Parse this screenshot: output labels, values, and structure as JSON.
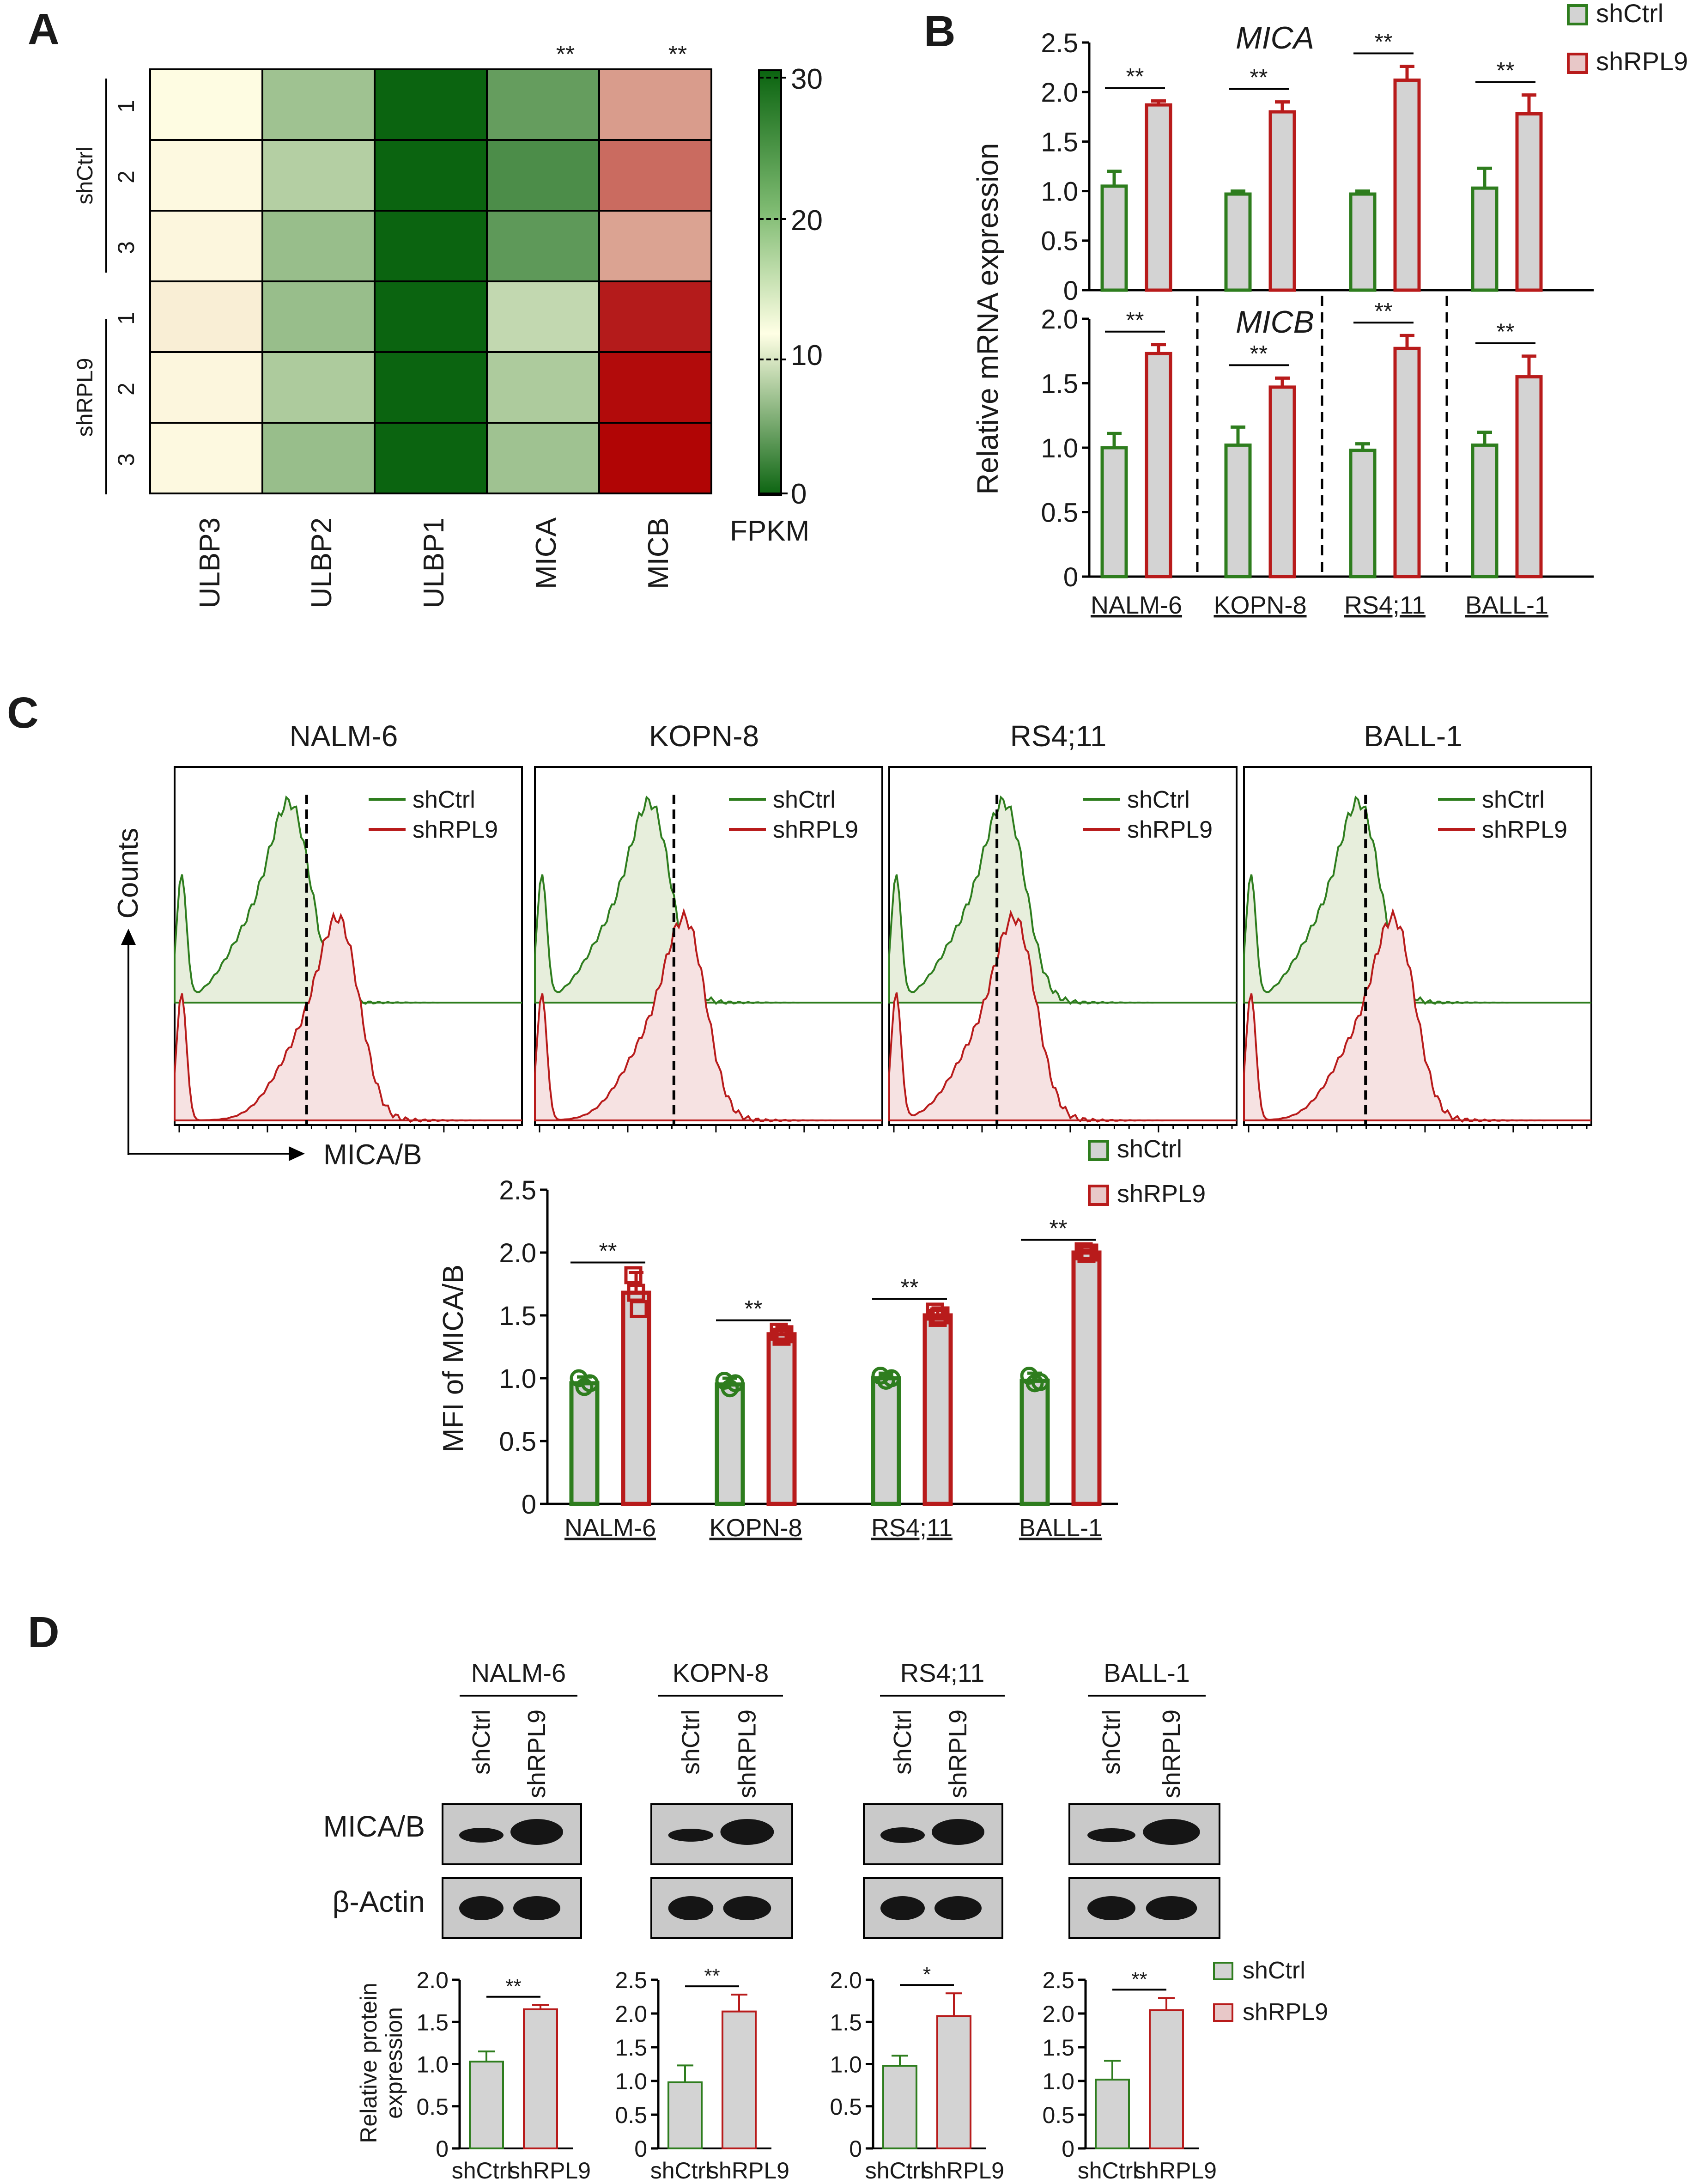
{
  "colors": {
    "green": "#2e7d1e",
    "red": "#b81b1b",
    "bar_fill": "#d3d3d3",
    "hm_dark": "#0b6410",
    "hm_red": "#b00000",
    "band": "#151515",
    "blot_bg": "#c9c9c9"
  },
  "panel_labels": [
    "A",
    "B",
    "C",
    "D"
  ],
  "chart_data": [
    {
      "id": "A",
      "type": "heatmap",
      "columns": [
        "ULBP3",
        "ULBP2",
        "ULBP1",
        "MICA",
        "MICB"
      ],
      "column_marks": [
        "",
        "",
        "",
        "**",
        "**"
      ],
      "row_groups": [
        {
          "name": "shCtrl",
          "rows": [
            "1",
            "2",
            "3"
          ]
        },
        {
          "name": "shRPL9",
          "rows": [
            "1",
            "2",
            "3"
          ]
        }
      ],
      "values": [
        [
          11.5,
          18.0,
          30.0,
          22.5,
          24.0
        ],
        [
          11.0,
          16.5,
          30.0,
          24.5,
          27.5
        ],
        [
          10.5,
          18.5,
          30.0,
          23.0,
          23.5
        ],
        [
          9.0,
          18.5,
          30.0,
          15.5,
          31.5
        ],
        [
          10.5,
          17.0,
          30.0,
          17.0,
          33.0
        ],
        [
          11.0,
          18.5,
          30.0,
          18.0,
          33.5
        ]
      ],
      "colorbar": {
        "label": "FPKM",
        "ticks": [
          "30",
          "20",
          "10",
          "0"
        ],
        "range": [
          0,
          30
        ]
      }
    },
    {
      "id": "B",
      "type": "bar",
      "ylabel": "Relative mRNA expression",
      "categories": [
        "NALM-6",
        "KOPN-8",
        "RS4;11",
        "BALL-1"
      ],
      "legend": [
        "shCtrl",
        "shRPL9"
      ],
      "panels": [
        {
          "title": "MICA",
          "ylim": [
            0,
            2.5
          ],
          "yticks": [
            "0",
            "0.5",
            "1.0",
            "1.5",
            "2.0",
            "2.5"
          ],
          "series": [
            {
              "name": "shCtrl",
              "values": [
                1.05,
                0.97,
                0.97,
                1.03
              ],
              "errors": [
                0.15,
                0.03,
                0.03,
                0.2
              ]
            },
            {
              "name": "shRPL9",
              "values": [
                1.87,
                1.8,
                2.12,
                1.78
              ],
              "errors": [
                0.04,
                0.1,
                0.14,
                0.19
              ]
            }
          ],
          "sig": [
            "**",
            "**",
            "**",
            "**"
          ]
        },
        {
          "title": "MICB",
          "ylim": [
            0,
            2.0
          ],
          "yticks": [
            "0",
            "0.5",
            "1.0",
            "1.5",
            "2.0"
          ],
          "series": [
            {
              "name": "shCtrl",
              "values": [
                1.0,
                1.02,
                0.98,
                1.02
              ],
              "errors": [
                0.11,
                0.14,
                0.05,
                0.1
              ]
            },
            {
              "name": "shRPL9",
              "values": [
                1.73,
                1.47,
                1.77,
                1.55
              ],
              "errors": [
                0.07,
                0.07,
                0.1,
                0.16
              ]
            }
          ],
          "sig": [
            "**",
            "**",
            "**",
            "**"
          ]
        }
      ]
    },
    {
      "id": "C-flow",
      "type": "histogram",
      "xlabel": "MICA/B",
      "ylabel": "Counts",
      "titles": [
        "NALM-6",
        "KOPN-8",
        "RS4;11",
        "BALL-1"
      ],
      "legend": [
        "shCtrl",
        "shRPL9"
      ],
      "shift": [
        0.14,
        0.1,
        0.03,
        0.1
      ],
      "dashed_x": [
        0.38,
        0.4,
        0.31,
        0.35
      ]
    },
    {
      "id": "C-bar",
      "type": "bar",
      "ylabel": "MFI of MICA/B",
      "categories": [
        "NALM-6",
        "KOPN-8",
        "RS4;11",
        "BALL-1"
      ],
      "ylim": [
        0,
        2.5
      ],
      "yticks": [
        "0",
        "0.5",
        "1.0",
        "1.5",
        "2.0",
        "2.5"
      ],
      "legend": [
        "shCtrl",
        "shRPL9"
      ],
      "series": [
        {
          "name": "shCtrl",
          "values": [
            0.96,
            0.95,
            1.0,
            0.98
          ],
          "errors": [
            0.05,
            0.05,
            0.04,
            0.06
          ],
          "points": [
            [
              1.0,
              0.93,
              0.96
            ],
            [
              0.98,
              0.92,
              0.96
            ],
            [
              1.02,
              0.98,
              1.0
            ],
            [
              1.02,
              0.96,
              0.97
            ]
          ]
        },
        {
          "name": "shRPL9",
          "values": [
            1.68,
            1.35,
            1.5,
            2.0
          ],
          "errors": [
            0.16,
            0.03,
            0.05,
            0.02
          ],
          "points": [
            [
              1.82,
              1.68,
              1.55
            ],
            [
              1.37,
              1.33,
              1.35
            ],
            [
              1.53,
              1.48,
              1.5
            ],
            [
              2.01,
              1.99,
              2.0
            ]
          ]
        }
      ],
      "sig": [
        "**",
        "**",
        "**",
        "**"
      ]
    },
    {
      "id": "D",
      "type": "bar",
      "cell_lines": [
        "NALM-6",
        "KOPN-8",
        "RS4;11",
        "BALL-1"
      ],
      "lane_labels": [
        "shCtrl",
        "shRPL9"
      ],
      "blot_rows": [
        "MICA/B",
        "β-Actin"
      ],
      "ylabel": [
        "Relative protein",
        "expression"
      ],
      "legend": [
        "shCtrl",
        "shRPL9"
      ],
      "panels": [
        {
          "ylim": [
            0,
            2.0
          ],
          "yticks": [
            "0",
            "0.5",
            "1.0",
            "1.5",
            "2.0"
          ],
          "values": [
            1.03,
            1.65
          ],
          "errors": [
            0.12,
            0.05
          ],
          "sig": "**"
        },
        {
          "ylim": [
            0,
            2.5
          ],
          "yticks": [
            "0",
            "0.5",
            "1.0",
            "1.5",
            "2.0",
            "2.5"
          ],
          "values": [
            0.98,
            2.03
          ],
          "errors": [
            0.25,
            0.25
          ],
          "sig": "**"
        },
        {
          "ylim": [
            0,
            2.0
          ],
          "yticks": [
            "0",
            "0.5",
            "1.0",
            "1.5",
            "2.0"
          ],
          "values": [
            0.98,
            1.57
          ],
          "errors": [
            0.12,
            0.27
          ],
          "sig": "*"
        },
        {
          "ylim": [
            0,
            2.5
          ],
          "yticks": [
            "0",
            "0.5",
            "1.0",
            "1.5",
            "2.0",
            "2.5"
          ],
          "values": [
            1.02,
            2.05
          ],
          "errors": [
            0.28,
            0.18
          ],
          "sig": "**"
        }
      ],
      "band_intensity": [
        [
          0.8,
          1.0
        ],
        [
          0.7,
          1.0
        ],
        [
          0.85,
          1.0
        ],
        [
          0.75,
          1.0
        ]
      ]
    }
  ]
}
